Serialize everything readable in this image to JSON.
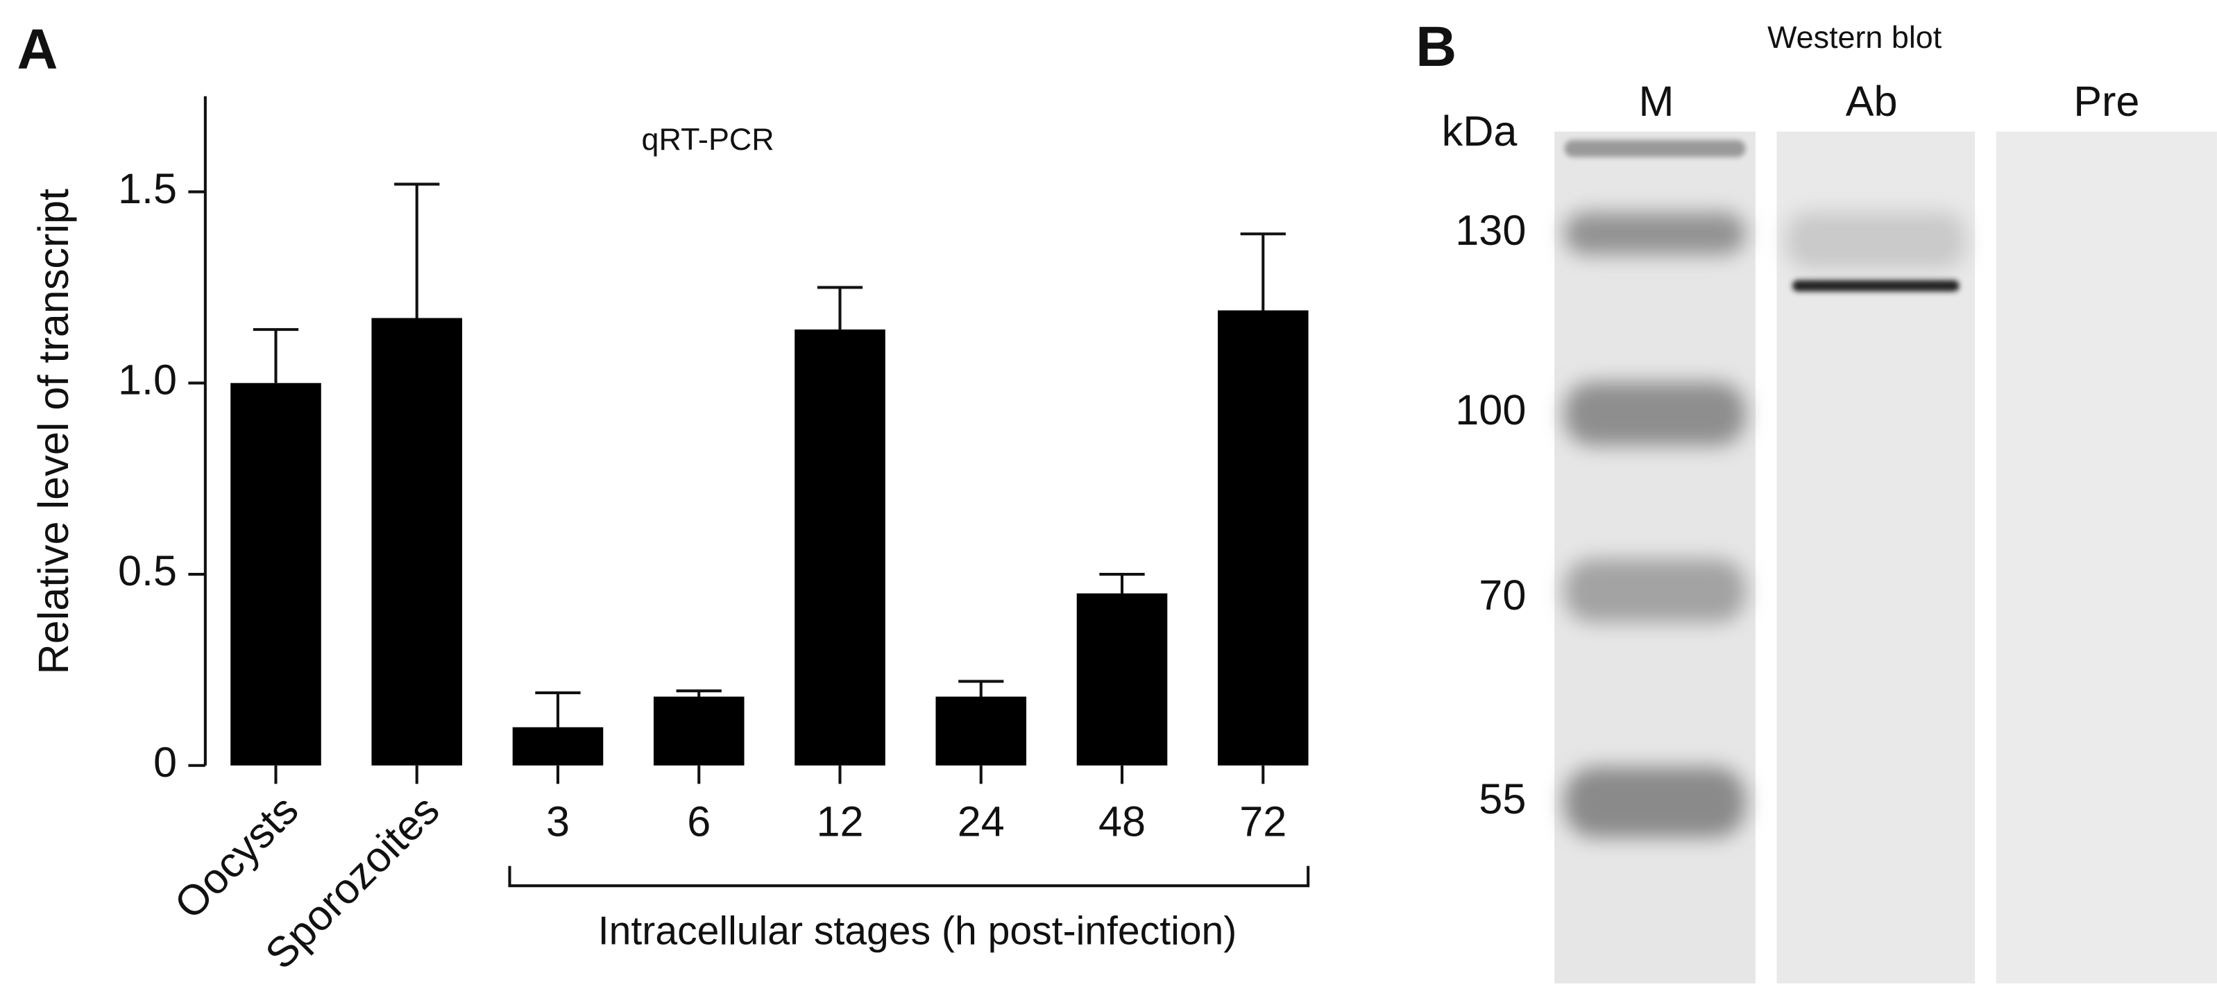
{
  "panel_a": {
    "label": "A"
  },
  "chart_data": {
    "type": "bar",
    "annotation": "qRT-PCR",
    "ylabel": "Relative level of transcript",
    "categories": [
      "Oocysts",
      "Sporozoites",
      "3",
      "6",
      "12",
      "24",
      "48",
      "72"
    ],
    "values": [
      1.0,
      1.17,
      0.1,
      0.18,
      1.14,
      0.18,
      0.45,
      1.19
    ],
    "errors": [
      0.14,
      0.35,
      0.09,
      0.015,
      0.11,
      0.04,
      0.05,
      0.2
    ],
    "color": "#000000",
    "ylim": [
      0,
      1.75
    ],
    "yticks": [
      0,
      0.5,
      {
        "value": 1,
        "label": "1.0"
      },
      1.5
    ],
    "group_label": "Intracellular stages (h post-infection)"
  },
  "panel_b": {
    "label": "B",
    "title": "Western blot",
    "unit": "kDa",
    "lanes": [
      "M",
      "Ab",
      "Pre"
    ],
    "markers": [
      "130",
      "100",
      "70",
      "55"
    ]
  }
}
